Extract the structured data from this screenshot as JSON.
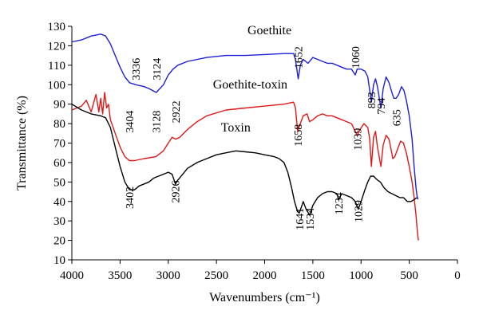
{
  "chart_data": {
    "type": "line",
    "xlabel": "Wavenumbers (cm⁻¹)",
    "ylabel": "Transmittance (%)",
    "xlim": [
      4000,
      0
    ],
    "ylim": [
      10,
      130
    ],
    "x_ticks": [
      4000,
      3500,
      3000,
      2500,
      2000,
      1500,
      1000,
      500,
      0
    ],
    "y_ticks": [
      10,
      20,
      30,
      40,
      50,
      60,
      70,
      80,
      90,
      100,
      110,
      120,
      130
    ],
    "grid": false,
    "series": [
      {
        "name": "Goethite",
        "color": "#1f1fd6",
        "points": [
          [
            4000,
            122
          ],
          [
            3900,
            123
          ],
          [
            3800,
            125
          ],
          [
            3700,
            126
          ],
          [
            3650,
            125
          ],
          [
            3600,
            121
          ],
          [
            3550,
            115
          ],
          [
            3500,
            109
          ],
          [
            3450,
            104
          ],
          [
            3400,
            101
          ],
          [
            3336,
            100
          ],
          [
            3250,
            99
          ],
          [
            3200,
            98
          ],
          [
            3124,
            96
          ],
          [
            3050,
            100
          ],
          [
            3000,
            105
          ],
          [
            2950,
            108
          ],
          [
            2900,
            110
          ],
          [
            2800,
            112
          ],
          [
            2600,
            114
          ],
          [
            2400,
            115
          ],
          [
            2200,
            115
          ],
          [
            2000,
            115.5
          ],
          [
            1800,
            116
          ],
          [
            1700,
            116
          ],
          [
            1680,
            113
          ],
          [
            1652,
            103
          ],
          [
            1630,
            110
          ],
          [
            1600,
            113
          ],
          [
            1550,
            111
          ],
          [
            1500,
            114
          ],
          [
            1450,
            113
          ],
          [
            1400,
            112
          ],
          [
            1350,
            111
          ],
          [
            1300,
            111
          ],
          [
            1250,
            110
          ],
          [
            1200,
            109
          ],
          [
            1150,
            108
          ],
          [
            1100,
            108
          ],
          [
            1060,
            105
          ],
          [
            1040,
            108
          ],
          [
            1000,
            108
          ],
          [
            960,
            107
          ],
          [
            930,
            104
          ],
          [
            893,
            91
          ],
          [
            870,
            100
          ],
          [
            850,
            103
          ],
          [
            830,
            99
          ],
          [
            794,
            88
          ],
          [
            770,
            98
          ],
          [
            740,
            104
          ],
          [
            710,
            101
          ],
          [
            680,
            96
          ],
          [
            660,
            93
          ],
          [
            635,
            93
          ],
          [
            610,
            95
          ],
          [
            580,
            99
          ],
          [
            555,
            97
          ],
          [
            530,
            92
          ],
          [
            500,
            84
          ],
          [
            470,
            72
          ],
          [
            450,
            58
          ],
          [
            430,
            47
          ],
          [
            420,
            43
          ],
          [
            410,
            41
          ]
        ]
      },
      {
        "name": "Goethite-toxin",
        "color": "#e01818",
        "points": [
          [
            4000,
            87
          ],
          [
            3900,
            89
          ],
          [
            3850,
            92
          ],
          [
            3800,
            86
          ],
          [
            3750,
            95
          ],
          [
            3720,
            86
          ],
          [
            3700,
            93
          ],
          [
            3680,
            85
          ],
          [
            3660,
            96
          ],
          [
            3640,
            88
          ],
          [
            3620,
            90
          ],
          [
            3600,
            82
          ],
          [
            3550,
            75
          ],
          [
            3500,
            68
          ],
          [
            3450,
            63
          ],
          [
            3404,
            61
          ],
          [
            3350,
            61
          ],
          [
            3250,
            62
          ],
          [
            3128,
            63
          ],
          [
            3050,
            66
          ],
          [
            3000,
            70
          ],
          [
            2960,
            73
          ],
          [
            2922,
            72
          ],
          [
            2880,
            73
          ],
          [
            2800,
            77
          ],
          [
            2700,
            81
          ],
          [
            2600,
            84
          ],
          [
            2400,
            87
          ],
          [
            2200,
            88
          ],
          [
            2000,
            89
          ],
          [
            1800,
            90
          ],
          [
            1700,
            91
          ],
          [
            1680,
            88
          ],
          [
            1658,
            76
          ],
          [
            1630,
            80
          ],
          [
            1600,
            84
          ],
          [
            1560,
            85
          ],
          [
            1534,
            81
          ],
          [
            1500,
            82
          ],
          [
            1450,
            84
          ],
          [
            1400,
            85
          ],
          [
            1350,
            84
          ],
          [
            1300,
            84
          ],
          [
            1250,
            83
          ],
          [
            1200,
            82
          ],
          [
            1150,
            81
          ],
          [
            1100,
            80
          ],
          [
            1039,
            74
          ],
          [
            1010,
            77
          ],
          [
            970,
            80
          ],
          [
            930,
            78
          ],
          [
            910,
            72
          ],
          [
            893,
            58
          ],
          [
            870,
            73
          ],
          [
            850,
            76
          ],
          [
            830,
            68
          ],
          [
            794,
            58
          ],
          [
            770,
            69
          ],
          [
            740,
            74
          ],
          [
            710,
            72
          ],
          [
            690,
            67
          ],
          [
            670,
            62
          ],
          [
            650,
            63
          ],
          [
            620,
            67
          ],
          [
            590,
            71
          ],
          [
            560,
            70
          ],
          [
            530,
            65
          ],
          [
            500,
            58
          ],
          [
            470,
            50
          ],
          [
            450,
            42
          ],
          [
            430,
            33
          ],
          [
            415,
            24
          ],
          [
            405,
            20
          ]
        ]
      },
      {
        "name": "Toxin",
        "color": "#000000",
        "points": [
          [
            4000,
            90
          ],
          [
            3900,
            87
          ],
          [
            3800,
            85
          ],
          [
            3700,
            84
          ],
          [
            3650,
            83
          ],
          [
            3600,
            78
          ],
          [
            3550,
            68
          ],
          [
            3500,
            58
          ],
          [
            3450,
            50
          ],
          [
            3402,
            46
          ],
          [
            3350,
            46
          ],
          [
            3300,
            48
          ],
          [
            3250,
            49
          ],
          [
            3200,
            50
          ],
          [
            3150,
            52
          ],
          [
            3100,
            53
          ],
          [
            3050,
            54
          ],
          [
            3000,
            55
          ],
          [
            2960,
            54
          ],
          [
            2926,
            49
          ],
          [
            2900,
            51
          ],
          [
            2850,
            54
          ],
          [
            2800,
            57
          ],
          [
            2700,
            60
          ],
          [
            2600,
            62
          ],
          [
            2500,
            64
          ],
          [
            2400,
            65
          ],
          [
            2300,
            66
          ],
          [
            2200,
            65.5
          ],
          [
            2100,
            65
          ],
          [
            2000,
            64
          ],
          [
            1900,
            63
          ],
          [
            1850,
            62
          ],
          [
            1800,
            60
          ],
          [
            1760,
            55
          ],
          [
            1720,
            47
          ],
          [
            1690,
            40
          ],
          [
            1660,
            35
          ],
          [
            1641,
            34
          ],
          [
            1620,
            37
          ],
          [
            1600,
            40
          ],
          [
            1570,
            36
          ],
          [
            1534,
            33
          ],
          [
            1500,
            38
          ],
          [
            1450,
            42
          ],
          [
            1400,
            44
          ],
          [
            1350,
            45
          ],
          [
            1300,
            45
          ],
          [
            1250,
            44
          ],
          [
            1234,
            41
          ],
          [
            1200,
            44
          ],
          [
            1150,
            43
          ],
          [
            1100,
            42
          ],
          [
            1060,
            40
          ],
          [
            1029,
            36
          ],
          [
            1000,
            40
          ],
          [
            960,
            46
          ],
          [
            930,
            50
          ],
          [
            900,
            53
          ],
          [
            870,
            53
          ],
          [
            830,
            51
          ],
          [
            800,
            50
          ],
          [
            760,
            47
          ],
          [
            720,
            45
          ],
          [
            680,
            44
          ],
          [
            640,
            43
          ],
          [
            600,
            42
          ],
          [
            560,
            42
          ],
          [
            520,
            40
          ],
          [
            480,
            40
          ],
          [
            450,
            41
          ],
          [
            420,
            42
          ]
        ]
      }
    ],
    "series_labels": [
      {
        "text": "Goethite",
        "x": 1950,
        "y": 126
      },
      {
        "text": "Goethite-toxin",
        "x": 2150,
        "y": 98
      },
      {
        "text": "Toxin",
        "x": 2300,
        "y": 76
      }
    ],
    "annotations": [
      {
        "text": "3336",
        "x": 3336,
        "y": 108
      },
      {
        "text": "3124",
        "x": 3124,
        "y": 108
      },
      {
        "text": "3404",
        "x": 3404,
        "y": 81
      },
      {
        "text": "3128",
        "x": 3128,
        "y": 81
      },
      {
        "text": "2922",
        "x": 2922,
        "y": 86
      },
      {
        "text": "3402",
        "x": 3402,
        "y": 42
      },
      {
        "text": "2926",
        "x": 2926,
        "y": 45
      },
      {
        "text": "1652",
        "x": 1652,
        "y": 114
      },
      {
        "text": "1658",
        "x": 1658,
        "y": 74
      },
      {
        "text": "1060",
        "x": 1060,
        "y": 114
      },
      {
        "text": "893",
        "x": 893,
        "y": 92
      },
      {
        "text": "794",
        "x": 794,
        "y": 89
      },
      {
        "text": "635",
        "x": 635,
        "y": 83
      },
      {
        "text": "1039",
        "x": 1039,
        "y": 72
      },
      {
        "text": "1641",
        "x": 1641,
        "y": 31
      },
      {
        "text": "1534",
        "x": 1534,
        "y": 31
      },
      {
        "text": "1234",
        "x": 1234,
        "y": 39
      },
      {
        "text": "1029",
        "x": 1029,
        "y": 35
      }
    ]
  }
}
